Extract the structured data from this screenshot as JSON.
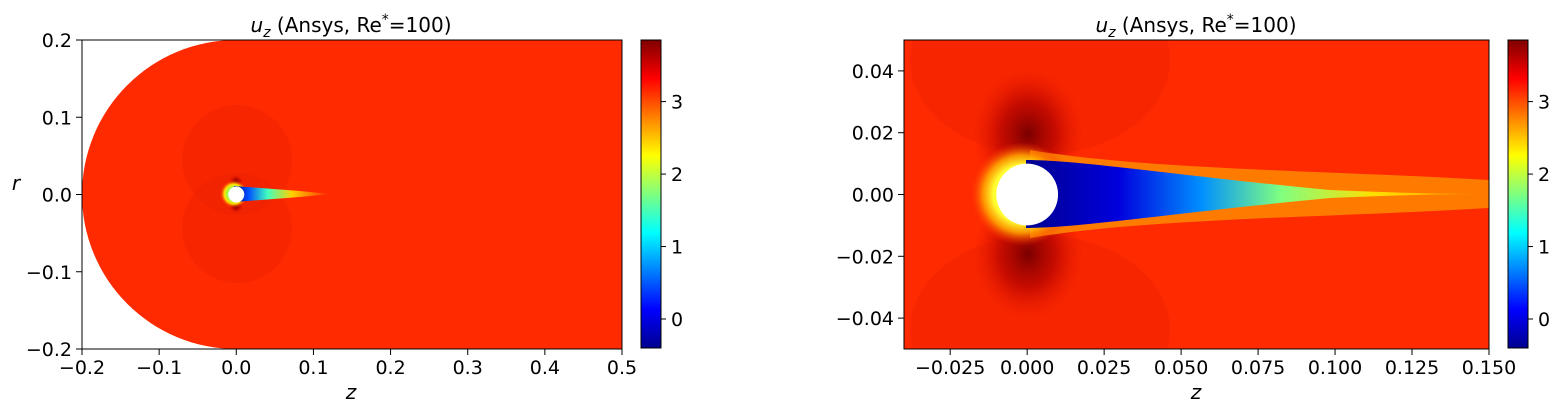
{
  "chart_data": [
    {
      "type": "heatmap",
      "title_var": "u",
      "title_sub": "z",
      "title_rest": " (Ansys, Re",
      "title_sup": "*",
      "title_end": "=100)",
      "xlabel": "z",
      "ylabel": "r",
      "xlim": [
        -0.2,
        0.5
      ],
      "ylim": [
        -0.2,
        0.2
      ],
      "xticks": [
        "−0.2",
        "−0.1",
        "0.0",
        "0.1",
        "0.2",
        "0.3",
        "0.4",
        "0.5"
      ],
      "yticks": [
        "−0.2",
        "−0.1",
        "0.0",
        "0.1",
        "0.2"
      ],
      "domain_shape": "semicircle-inlet-rectangle",
      "inlet_radius": 0.2,
      "sphere_radius": 0.01,
      "colorbar_range": [
        -0.4,
        3.85
      ],
      "colorbar_ticks": [
        "0",
        "1",
        "2",
        "3"
      ],
      "colormap": "jet",
      "freestream_value": 3.3
    },
    {
      "type": "heatmap",
      "title_var": "u",
      "title_sub": "z",
      "title_rest": " (Ansys, Re",
      "title_sup": "*",
      "title_end": "=100)",
      "xlabel": "z",
      "ylabel": "",
      "xlim": [
        -0.04,
        0.15
      ],
      "ylim": [
        -0.05,
        0.05
      ],
      "xticks": [
        "−0.025",
        "0.000",
        "0.025",
        "0.050",
        "0.075",
        "0.100",
        "0.125",
        "0.150"
      ],
      "yticks": [
        "−0.04",
        "−0.02",
        "0.00",
        "0.02",
        "0.04"
      ],
      "domain_shape": "rectangle",
      "sphere_radius": 0.01,
      "colorbar_range": [
        -0.4,
        3.85
      ],
      "colorbar_ticks": [
        "0",
        "1",
        "2",
        "3"
      ],
      "colormap": "jet",
      "freestream_value": 3.3
    }
  ]
}
